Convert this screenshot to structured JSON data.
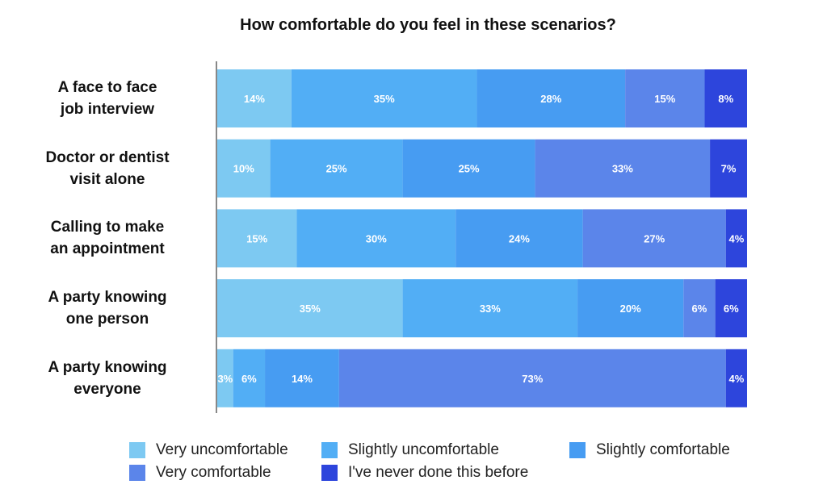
{
  "title": "How comfortable do you feel in these scenarios?",
  "chart_data": {
    "type": "bar",
    "orientation": "horizontal",
    "stacked": true,
    "title": "How comfortable do you feel in these scenarios?",
    "categories": [
      "A face to face\njob interview",
      "Doctor or dentist\nvisit alone",
      "Calling to make\nan appointment",
      "A party knowing\none person",
      "A party knowing\neveryone"
    ],
    "series": [
      {
        "name": "Very uncomfortable",
        "color": "#7dc9f2",
        "values": [
          14,
          10,
          15,
          35,
          3
        ]
      },
      {
        "name": "Slightly uncomfortable",
        "color": "#52aef5",
        "values": [
          35,
          25,
          30,
          33,
          6
        ]
      },
      {
        "name": "Slightly comfortable",
        "color": "#479cf2",
        "values": [
          28,
          25,
          24,
          20,
          14
        ]
      },
      {
        "name": "Very comfortable",
        "color": "#5b85ea",
        "values": [
          15,
          33,
          27,
          6,
          73
        ]
      },
      {
        "name": "I've never done this before",
        "color": "#2d45dc",
        "values": [
          8,
          7,
          4,
          6,
          4
        ]
      }
    ],
    "value_suffix": "%",
    "legend_position": "bottom",
    "grid": false
  }
}
